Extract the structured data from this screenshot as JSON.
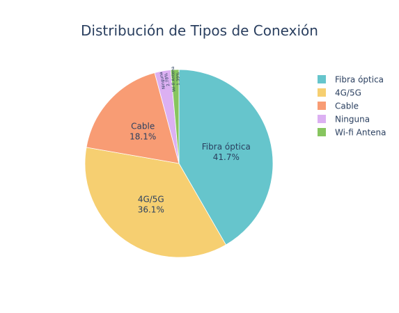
{
  "chart_data": {
    "type": "pie",
    "title": "Distribución de Tipos de Conexión",
    "categories": [
      "Fibra óptica",
      "4G/5G",
      "Cable",
      "Ninguna",
      "Wi-fi Antena"
    ],
    "values": [
      41.7,
      36.1,
      18.1,
      2.78,
      1.39
    ],
    "labels_text": [
      "41.7%",
      "36.1%",
      "18.1%",
      "2.78%",
      "1.39%"
    ],
    "colors": [
      "#66c5cc",
      "#f6cf71",
      "#f89c74",
      "#dcb0f2",
      "#87c55f"
    ],
    "legend_position": "top-right",
    "direction": "clockwise",
    "start_angle_deg": 0
  }
}
